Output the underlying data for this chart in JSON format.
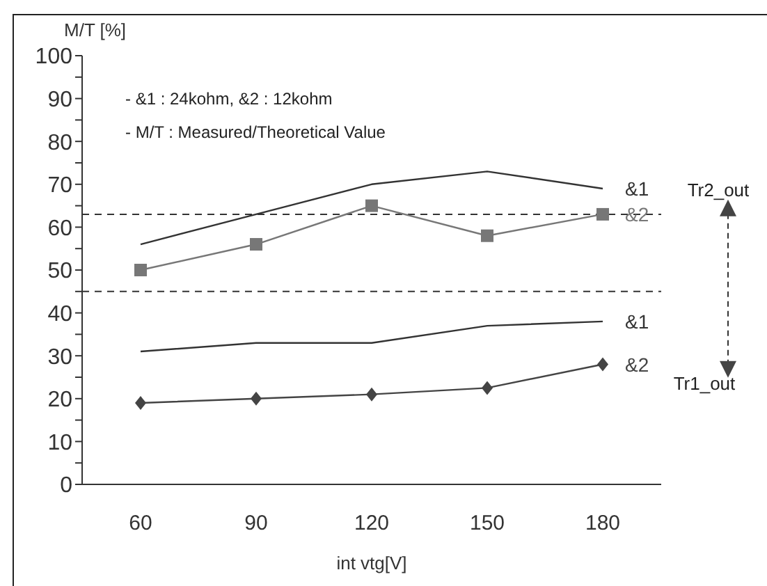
{
  "chart_data": {
    "type": "line",
    "ylabel": "M/T [%]",
    "xlabel": "int vtg[V]",
    "categories": [
      "60",
      "90",
      "120",
      "150",
      "180"
    ],
    "series": [
      {
        "name": "&1",
        "color": "#333333",
        "marker": "none",
        "values": [
          56,
          63,
          70,
          73,
          69
        ]
      },
      {
        "name": "&2",
        "color": "#777777",
        "marker": "square",
        "values": [
          50,
          56,
          65,
          58,
          63
        ]
      },
      {
        "name": "&1",
        "color": "#333333",
        "marker": "none",
        "values": [
          31,
          33,
          33,
          37,
          38
        ]
      },
      {
        "name": "&2",
        "color": "#444444",
        "marker": "diamond",
        "values": [
          19,
          20,
          21,
          22.5,
          28
        ]
      }
    ],
    "ylim": [
      0,
      100
    ],
    "yticks": [
      0,
      {
        "value": 5,
        "label": null
      },
      10,
      {
        "value": 15,
        "label": null
      },
      20,
      {
        "value": 25,
        "label": null
      },
      30,
      {
        "value": 35,
        "label": null
      },
      40,
      {
        "value": 45,
        "label": null
      },
      50,
      {
        "value": 55,
        "label": null
      },
      60,
      {
        "value": 65,
        "label": null
      },
      70,
      {
        "value": 75,
        "label": null
      },
      80,
      {
        "value": 85,
        "label": null
      },
      90,
      {
        "value": 95,
        "label": null
      },
      100
    ],
    "ref_lines": [
      {
        "axis": "y",
        "value": 63,
        "color": "#333333",
        "line_style": "dashed"
      },
      {
        "axis": "y",
        "value": 45,
        "color": "#333333",
        "line_style": "dashed"
      }
    ],
    "annotations": [
      "- &1 : 24kohm, &2 : 12kohm",
      "- M/T : Measured/Theoretical Value",
      "Tr2_out",
      "Tr1_out"
    ],
    "grid": false,
    "legend": false
  }
}
